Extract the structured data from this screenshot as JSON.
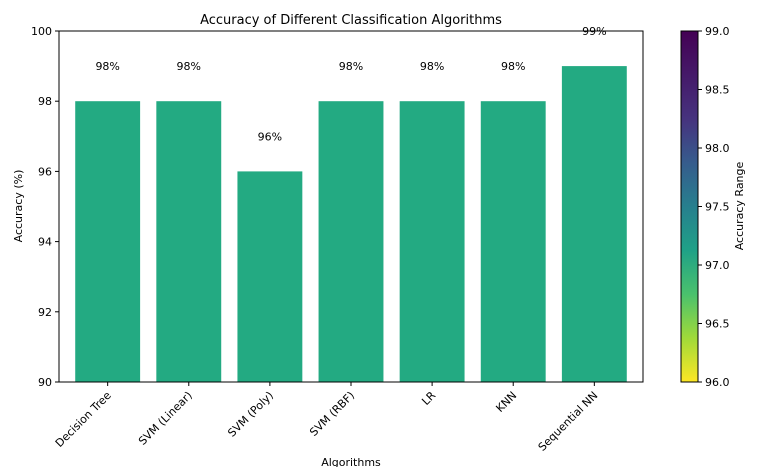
{
  "chart_data": {
    "type": "bar",
    "title": "Accuracy of Different Classification Algorithms",
    "xlabel": "Algorithms",
    "ylabel": "Accuracy (%)",
    "categories": [
      "Decision Tree",
      "SVM (Linear)",
      "SVM (Poly)",
      "SVM (RBF)",
      "LR",
      "KNN",
      "Sequential NN"
    ],
    "values": [
      98,
      98,
      96,
      98,
      98,
      98,
      99
    ],
    "data_labels": [
      "98%",
      "98%",
      "96%",
      "98%",
      "98%",
      "98%",
      "99%"
    ],
    "ylim": [
      90,
      100
    ],
    "yticks": [
      "90",
      "92",
      "94",
      "96",
      "98",
      "100"
    ],
    "bar_color": "#23aa82",
    "grid": false,
    "colorbar": {
      "label": "Accuracy Range",
      "range": [
        96.0,
        99.0
      ],
      "ticks": [
        "96.0",
        "96.5",
        "97.0",
        "97.5",
        "98.0",
        "98.5",
        "99.0"
      ],
      "colormap": "viridis-reversed"
    }
  }
}
